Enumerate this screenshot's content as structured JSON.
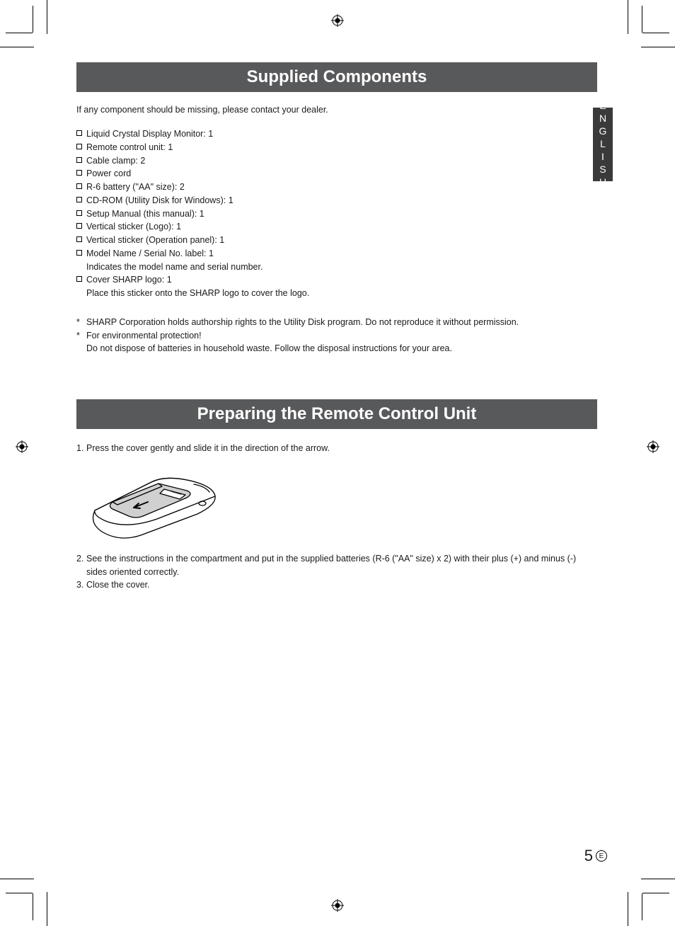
{
  "section1": {
    "title": "Supplied Components",
    "intro": "If any component should be missing, please contact your dealer.",
    "items": [
      {
        "text": "Liquid Crystal Display Monitor: 1"
      },
      {
        "text": "Remote control unit: 1"
      },
      {
        "text": "Cable clamp: 2"
      },
      {
        "text": "Power cord"
      },
      {
        "text": "R-6 battery (\"AA\" size): 2"
      },
      {
        "text": "CD-ROM (Utility Disk for Windows): 1"
      },
      {
        "text": "Setup Manual (this manual): 1"
      },
      {
        "text": "Vertical sticker (Logo): 1"
      },
      {
        "text": "Vertical sticker (Operation panel): 1"
      },
      {
        "text": "Model Name / Serial No. label: 1",
        "sub": "Indicates the model name and serial number."
      },
      {
        "text": "Cover SHARP logo: 1",
        "sub": "Place this sticker onto the SHARP logo to cover the logo."
      }
    ],
    "notes": [
      {
        "text": "SHARP Corporation holds authorship rights to the Utility Disk program. Do not reproduce it without permission."
      },
      {
        "text": "For environmental protection!",
        "sub": "Do not dispose of batteries in household waste. Follow the disposal instructions for your area."
      }
    ]
  },
  "section2": {
    "title": "Preparing the Remote Control Unit",
    "steps": [
      {
        "num": "1.",
        "text": "Press the cover gently and slide it in the direction of the arrow."
      },
      {
        "num": "2.",
        "text": "See the instructions in the compartment and put in the supplied batteries (R-6 (\"AA\" size) x 2) with their plus (+) and minus (-) sides oriented correctly."
      },
      {
        "num": "3.",
        "text": "Close the cover."
      }
    ]
  },
  "langTab": "ENGLISH",
  "pageNumber": "5",
  "pageLetter": "E",
  "colors": {
    "headerBg": "#58595b",
    "headerText": "#ffffff",
    "bodyText": "#1a1a1a",
    "tabBg": "#3a3a3a"
  },
  "fonts": {
    "headerSize": 24,
    "bodySize": 12.5,
    "pageNumSize": 22
  }
}
